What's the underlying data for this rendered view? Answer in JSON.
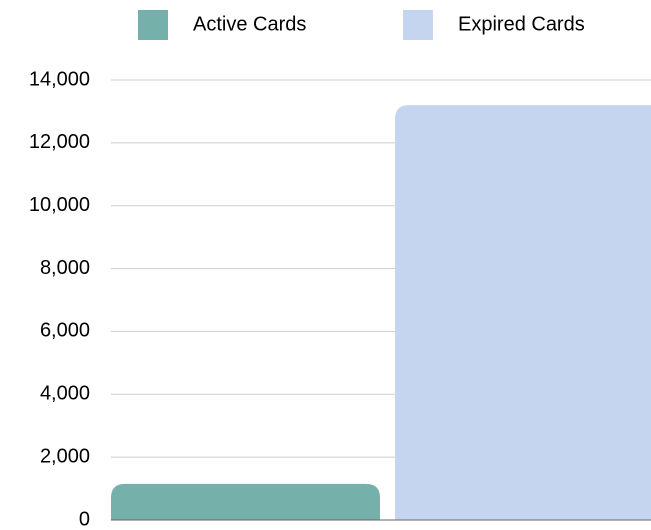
{
  "chart_data": {
    "type": "bar",
    "categories": [
      null
    ],
    "series": [
      {
        "name": "Active Cards",
        "color": "#76b0aa",
        "values": [
          1150
        ]
      },
      {
        "name": "Expired Cards",
        "color": "#c5d5ef",
        "values": [
          13200
        ]
      }
    ],
    "ylim": [
      0,
      14000
    ],
    "yticks": [
      0,
      {
        "value": 2000,
        "label": "2,000"
      },
      {
        "value": 4000,
        "label": "4,000"
      },
      {
        "value": 6000,
        "label": "6,000"
      },
      {
        "value": 8000,
        "label": "8,000"
      },
      {
        "value": 10000,
        "label": "10,000"
      },
      {
        "value": 12000,
        "label": "12,000"
      },
      {
        "value": 14000,
        "label": "14,000"
      }
    ],
    "grid": true,
    "legend": "top"
  }
}
